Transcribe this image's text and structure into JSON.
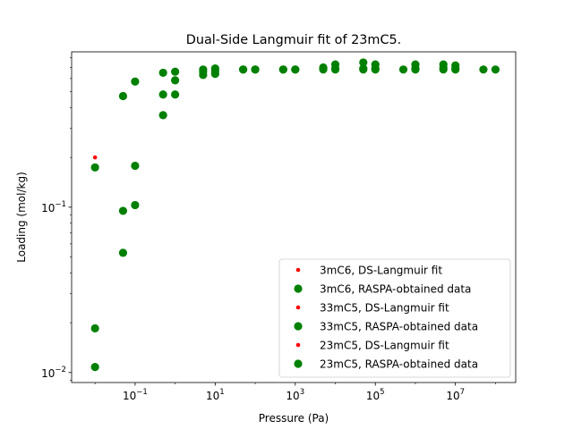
{
  "chart_data": {
    "type": "scatter",
    "title": "Dual-Side Langmuir fit of 23mC5.",
    "xlabel": "Pressure (Pa)",
    "ylabel": "Loading (mol/kg)",
    "xscale": "log",
    "yscale": "log",
    "xlim": [
      0.0026,
      320000000.0
    ],
    "ylim": [
      0.0087,
      0.87
    ],
    "x_ticks": [
      {
        "value": 0.1,
        "base": "10",
        "exp": "−1"
      },
      {
        "value": 10,
        "base": "10",
        "exp": "1"
      },
      {
        "value": 1000,
        "base": "10",
        "exp": "3"
      },
      {
        "value": 100000,
        "base": "10",
        "exp": "5"
      },
      {
        "value": 10000000,
        "base": "10",
        "exp": "7"
      }
    ],
    "y_ticks": [
      {
        "value": 0.01,
        "base": "10",
        "exp": "−2"
      },
      {
        "value": 0.1,
        "base": "10",
        "exp": "−1"
      }
    ],
    "grid": false,
    "legend_position": "lower-right",
    "series": [
      {
        "name": "3mC6, DS-Langmuir fit",
        "marker": "small-dot",
        "color": "#ff0000",
        "points": [
          [
            0.01,
            0.2
          ]
        ]
      },
      {
        "name": "3mC6, RASPA-obtained data",
        "marker": "circle",
        "color": "#008000",
        "points": [
          [
            0.01,
            0.0108
          ],
          [
            0.05,
            0.053
          ],
          [
            0.1,
            0.103
          ],
          [
            0.5,
            0.36
          ],
          [
            1,
            0.585
          ],
          [
            5,
            0.66
          ],
          [
            10,
            0.67
          ],
          [
            50,
            0.68
          ],
          [
            100,
            0.68
          ],
          [
            500,
            0.68
          ],
          [
            1000,
            0.68
          ],
          [
            5000,
            0.68
          ],
          [
            10000,
            0.68
          ],
          [
            50000,
            0.68
          ],
          [
            100000,
            0.68
          ],
          [
            500000,
            0.68
          ],
          [
            1000000,
            0.68
          ],
          [
            5000000,
            0.68
          ],
          [
            10000000,
            0.68
          ],
          [
            50000000,
            0.68
          ],
          [
            100000000,
            0.68
          ]
        ]
      },
      {
        "name": "33mC5, DS-Langmuir fit",
        "marker": "small-dot",
        "color": "#ff0000",
        "points": []
      },
      {
        "name": "33mC5, RASPA-obtained data",
        "marker": "circle",
        "color": "#008000",
        "points": [
          [
            0.01,
            0.0185
          ],
          [
            0.05,
            0.095
          ],
          [
            0.1,
            0.178
          ],
          [
            0.5,
            0.48
          ],
          [
            1,
            0.48
          ],
          [
            5,
            0.63
          ],
          [
            10,
            0.64
          ],
          [
            50,
            0.68
          ],
          [
            100,
            0.68
          ],
          [
            500,
            0.68
          ],
          [
            1000,
            0.68
          ],
          [
            5000,
            0.69
          ],
          [
            10000,
            0.69
          ],
          [
            50000,
            0.69
          ],
          [
            100000,
            0.69
          ],
          [
            1000000,
            0.69
          ],
          [
            5000000,
            0.7
          ],
          [
            10000000,
            0.69
          ]
        ]
      },
      {
        "name": "23mC5, DS-Langmuir fit",
        "marker": "small-dot",
        "color": "#ff0000",
        "points": []
      },
      {
        "name": "23mC5, RASPA-obtained data",
        "marker": "circle",
        "color": "#008000",
        "points": [
          [
            0.01,
            0.174
          ],
          [
            0.05,
            0.47
          ],
          [
            0.1,
            0.575
          ],
          [
            0.5,
            0.65
          ],
          [
            1,
            0.66
          ],
          [
            5,
            0.68
          ],
          [
            10,
            0.69
          ],
          [
            5000,
            0.7
          ],
          [
            10000,
            0.73
          ],
          [
            50000,
            0.75
          ],
          [
            100000,
            0.73
          ],
          [
            1000000,
            0.73
          ],
          [
            5000000,
            0.73
          ],
          [
            10000000,
            0.72
          ]
        ]
      }
    ]
  }
}
